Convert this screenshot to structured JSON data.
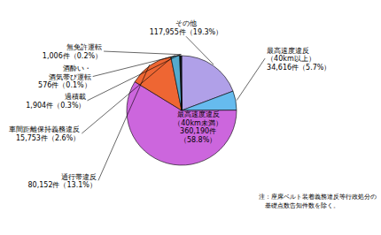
{
  "chart_data": {
    "type": "pie",
    "categories": [
      "その他",
      "最高速度違反\n（40km以上）",
      "最高速度違反\n（40km未満）",
      "通行帯違反",
      "車間距離保持義務違反",
      "過積載",
      "酒酔い・\n酒気帯び運転",
      "無免許運転"
    ],
    "values": [
      117955,
      34616,
      360190,
      80152,
      15753,
      1904,
      576,
      1006
    ],
    "value_labels": [
      "117,955件（19.3%）",
      "34,616件（5.7%）",
      "360,190件\n（58.8%）",
      "80,152件（13.1%）",
      "15,753件（2.6%）",
      "1,904件（0.3%）",
      "576件（0.1%）",
      "1,006件（0.2%）"
    ],
    "colors": [
      "#b0a0e8",
      "#66bbee",
      "#cc66dd",
      "#ee6633",
      "#55aacc",
      "#222222",
      "#334488",
      "#446699"
    ],
    "data_labels": true,
    "annotation": "注：座席ベルト装着義務違反等行政処分の\n　基礎点数告知件数を除く。"
  }
}
